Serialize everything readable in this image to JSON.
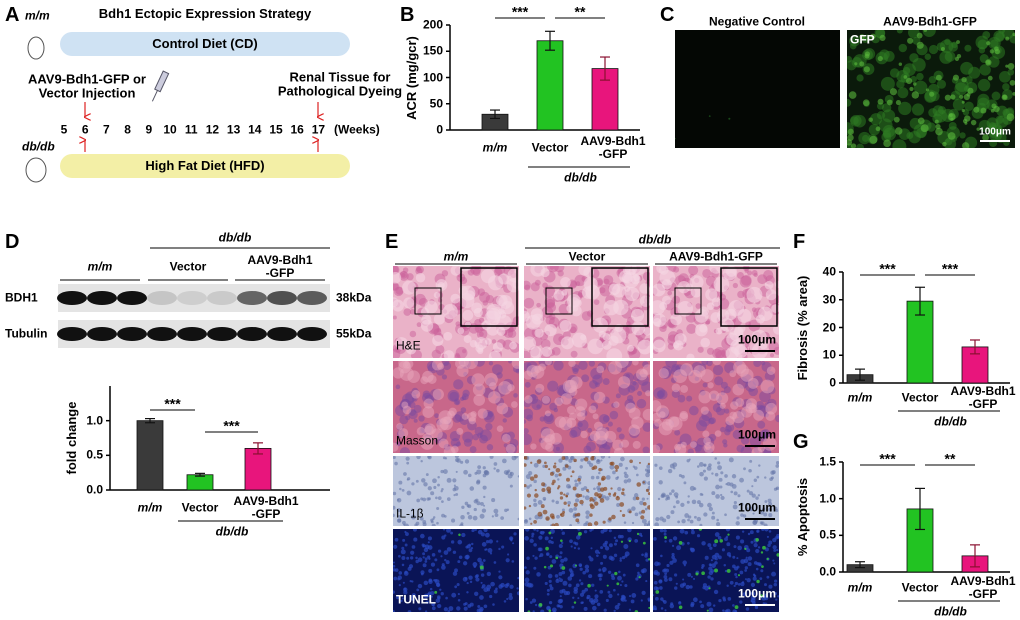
{
  "panel_a": {
    "label": "A",
    "strain_top": "m/m",
    "title": "Bdh1 Ectopic Expression Strategy",
    "top_diet": "Control Diet (CD)",
    "injection": "AAV9-Bdh1-GFP or\nVector Injection",
    "endpoint": "Renal Tissue for\nPathological Dyeing",
    "weeks": [
      5,
      6,
      7,
      8,
      9,
      10,
      11,
      12,
      13,
      14,
      15,
      16,
      17
    ],
    "weeks_unit": "(Weeks)",
    "strain_bottom": "db/db",
    "bottom_diet": "High Fat Diet (HFD)"
  },
  "panel_c": {
    "label": "C",
    "images": [
      {
        "title": "Negative Control"
      },
      {
        "title": "AAV9-Bdh1-GFP",
        "channel": "GFP",
        "scale": "100μm"
      }
    ]
  },
  "panel_d_blot": {
    "label": "D",
    "group": "db/db",
    "lanes": [
      "m/m",
      "Vector",
      "AAV9-Bdh1\n-GFP"
    ],
    "rows": [
      {
        "protein": "BDH1",
        "size": "38kDa"
      },
      {
        "protein": "Tubulin",
        "size": "55kDa"
      }
    ]
  },
  "panel_e": {
    "label": "E",
    "group": "db/db",
    "columns": [
      "m/m",
      "Vector",
      "AAV9-Bdh1-GFP"
    ],
    "rows": [
      "H&E",
      "Masson",
      "IL-1β",
      "TUNEL"
    ],
    "scale": "100μm"
  },
  "chart_data": [
    {
      "type": "bar",
      "panel": "B",
      "ylabel": "ACR (mg/gcr)",
      "categories": [
        "m/m",
        "Vector",
        "AAV9-Bdh1\n-GFP"
      ],
      "values": [
        30,
        170,
        117
      ],
      "errors": [
        8,
        18,
        22
      ],
      "colors": [
        "#3a3a3a",
        "#22c322",
        "#e8157c"
      ],
      "ylim": [
        0,
        200
      ],
      "yticks": [
        0,
        50,
        100,
        150,
        200
      ],
      "significance": [
        "***",
        "**"
      ],
      "group_label": "db/db"
    },
    {
      "type": "bar",
      "ylabel": "fold change",
      "categories": [
        "m/m",
        "Vector",
        "AAV9-Bdh1\n-GFP"
      ],
      "values": [
        1.0,
        0.22,
        0.6
      ],
      "errors": [
        0.03,
        0.02,
        0.08
      ],
      "colors": [
        "#3a3a3a",
        "#22c322",
        "#e8157c"
      ],
      "ylim": [
        0,
        1.5
      ],
      "yticks": [
        {
          "value": 0,
          "label": "0.0"
        },
        {
          "value": 0.5,
          "label": "0.5"
        },
        {
          "value": 1,
          "label": "1.0"
        }
      ],
      "significance": [
        "***",
        "***"
      ],
      "group_label": "db/db"
    },
    {
      "type": "bar",
      "panel": "F",
      "ylabel": "Fibrosis (% area)",
      "categories": [
        "m/m",
        "Vector",
        "AAV9-Bdh1\n-GFP"
      ],
      "values": [
        3,
        29.5,
        13
      ],
      "errors": [
        2,
        5,
        2.5
      ],
      "colors": [
        "#3a3a3a",
        "#22c322",
        "#e8157c"
      ],
      "ylim": [
        0,
        40
      ],
      "yticks": [
        0,
        10,
        20,
        30,
        40
      ],
      "significance": [
        "***",
        "***"
      ],
      "group_label": "db/db"
    },
    {
      "type": "bar",
      "panel": "G",
      "ylabel": "% Apoptosis",
      "categories": [
        "m/m",
        "Vector",
        "AAV9-Bdh1\n-GFP"
      ],
      "values": [
        0.1,
        0.86,
        0.22
      ],
      "errors": [
        0.04,
        0.28,
        0.15
      ],
      "colors": [
        "#3a3a3a",
        "#22c322",
        "#e8157c"
      ],
      "ylim": [
        0,
        1.5
      ],
      "yticks": [
        {
          "value": 0,
          "label": "0.0"
        },
        {
          "value": 0.5,
          "label": "0.5"
        },
        {
          "value": 1,
          "label": "1.0"
        },
        {
          "value": 1.5,
          "label": "1.5"
        }
      ],
      "significance": [
        "***",
        "**"
      ],
      "group_label": "db/db"
    }
  ]
}
